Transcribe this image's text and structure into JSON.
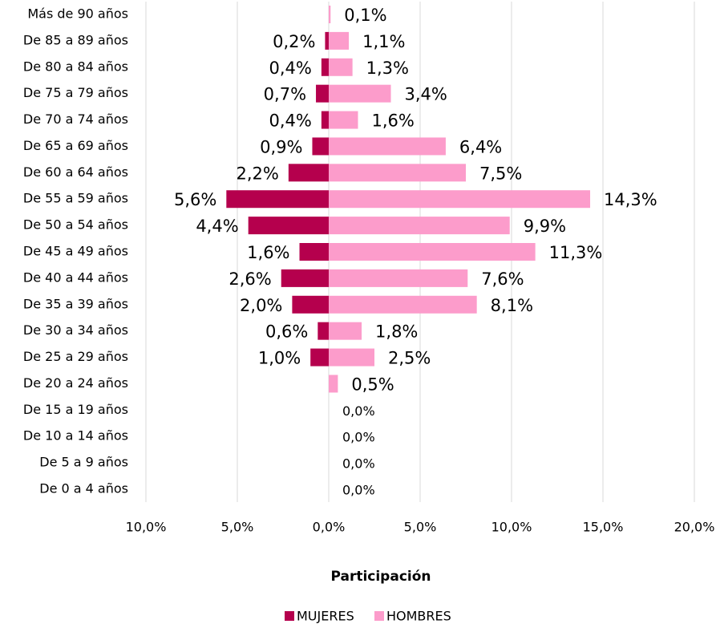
{
  "chart_data": {
    "type": "pyramid",
    "xlabel": "Participación",
    "categories": [
      "Más de 90 años",
      "De 85 a 89 años",
      "De 80 a 84 años",
      "De 75 a 79 años",
      "De 70 a 74 años",
      "De 65 a 69 años",
      "De 60 a 64 años",
      "De 55 a 59 años",
      "De 50 a 54 años",
      "De 45 a 49 años",
      "De 40 a 44 años",
      "De 35 a 39 años",
      "De 30 a 34 años",
      "De 25 a 29 años",
      "De 20 a 24 años",
      "De 15 a 19 años",
      "De 10 a 14 años",
      "De 5 a 9 años",
      "De 0 a 4 años"
    ],
    "series": [
      {
        "name": "MUJERES",
        "color": "#b5004d",
        "values": [
          0,
          -0.2,
          -0.4,
          -0.7,
          -0.4,
          -0.9,
          -2.2,
          -5.6,
          -4.4,
          -1.6,
          -2.6,
          -2.0,
          -0.6,
          -1.0,
          0,
          0,
          0,
          0,
          0
        ],
        "value_labels": [
          null,
          "0,2%",
          "0,4%",
          "0,7%",
          "0,4%",
          "0,9%",
          "2,2%",
          "5,6%",
          "4,4%",
          "1,6%",
          "2,6%",
          "2,0%",
          "0,6%",
          "1,0%",
          null,
          null,
          null,
          null,
          null
        ]
      },
      {
        "name": "HOMBRES",
        "color": "#fc9ccb",
        "values": [
          0.1,
          1.1,
          1.3,
          3.4,
          1.6,
          6.4,
          7.5,
          14.3,
          9.9,
          11.3,
          7.6,
          8.1,
          1.8,
          2.5,
          0.5,
          0,
          0,
          0,
          0
        ],
        "value_labels": [
          "0,1%",
          "1,1%",
          "1,3%",
          "3,4%",
          "1,6%",
          "6,4%",
          "7,5%",
          "14,3%",
          "9,9%",
          "11,3%",
          "7,6%",
          "8,1%",
          "1,8%",
          "2,5%",
          "0,5%",
          "0,0%",
          "0,0%",
          "0,0%",
          "0,0%"
        ]
      }
    ],
    "xlim": [
      -10,
      20
    ],
    "xticks": [
      {
        "value": -10,
        "label": "10,0%"
      },
      {
        "value": -5,
        "label": "5,0%"
      },
      {
        "value": 0,
        "label": "0,0%"
      },
      {
        "value": 5,
        "label": "5,0%"
      },
      {
        "value": 10,
        "label": "10,0%"
      },
      {
        "value": 15,
        "label": "15,0%"
      },
      {
        "value": 20,
        "label": "20,0%"
      }
    ],
    "grid": true,
    "legend": "bottom"
  }
}
